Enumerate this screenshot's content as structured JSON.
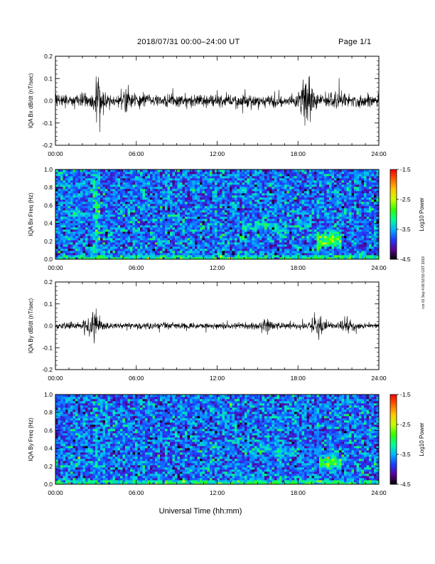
{
  "header": {
    "title": "2018/07/31  00:00–24:00 UT",
    "page": "Page 1/1"
  },
  "side_stamp": "run 01 Sep 4:06:53:53 GST 2019",
  "colors": {
    "background": "#ffffff",
    "trace": "#000000",
    "colorbar": [
      "#000000",
      "#5a0096",
      "#1e3cff",
      "#00b4ff",
      "#00ff96",
      "#32ff00",
      "#c8ff00",
      "#ffc800",
      "#ff6400",
      "#ff0000"
    ]
  },
  "chart_data": [
    {
      "type": "line",
      "ylabel": "IQA Bx dB/dt (nT/sec)",
      "xlim": [
        0,
        24
      ],
      "ylim": [
        -0.2,
        0.2
      ],
      "xticks": [
        "00:00",
        "06:00",
        "12:00",
        "18:00",
        "24:00"
      ],
      "yticks": [
        "-0.2",
        "-0.1",
        "0.0",
        "0.1",
        "0.2"
      ],
      "bursts": [
        {
          "center_h": 3.2,
          "width_h": 0.8,
          "amplitude": 0.15
        },
        {
          "center_h": 5.3,
          "width_h": 0.4,
          "amplitude": 0.05
        },
        {
          "center_h": 18.6,
          "width_h": 1.2,
          "amplitude": 0.13
        },
        {
          "center_h": 20.8,
          "width_h": 0.8,
          "amplitude": 0.06
        }
      ],
      "background_amplitude": 0.03
    },
    {
      "type": "heatmap",
      "ylabel": "IQA Bx Freq (Hz)",
      "xlim": [
        0,
        24
      ],
      "ylim": [
        0.0,
        1.0
      ],
      "xticks": [
        "00:00",
        "06:00",
        "12:00",
        "18:00",
        "24:00"
      ],
      "yticks": [
        "0.0",
        "0.2",
        "0.4",
        "0.6",
        "0.8",
        "1.0"
      ],
      "colorbar": {
        "label": "Log10 Power",
        "range": [
          -4.5,
          -1.5
        ],
        "ticks": [
          "-1.5",
          "-2.5",
          "-3.5",
          "-4.5"
        ]
      },
      "background_level": -3.7,
      "features": [
        {
          "t_start": 0,
          "t_end": 24,
          "f_center": 0.02,
          "f_width": 0.04,
          "level": -2.8
        },
        {
          "t_start": 13.8,
          "t_end": 18.3,
          "f_center": 0.37,
          "f_width": 0.08,
          "level": -3.3
        },
        {
          "t_start": 19.4,
          "t_end": 21.2,
          "f_center": 0.22,
          "f_width": 0.16,
          "level": -2.6
        },
        {
          "t_start": 2.8,
          "t_end": 3.3,
          "f_center": 0.5,
          "f_width": 1.0,
          "level": -3.3
        }
      ]
    },
    {
      "type": "line",
      "ylabel": "IQA By dB/dt (nT/sec)",
      "xlim": [
        0,
        24
      ],
      "ylim": [
        -0.2,
        0.2
      ],
      "xticks": [
        "00:00",
        "06:00",
        "12:00",
        "18:00",
        "24:00"
      ],
      "yticks": [
        "-0.2",
        "-0.1",
        "0.0",
        "0.1",
        "0.2"
      ],
      "bursts": [
        {
          "center_h": 2.8,
          "width_h": 1.2,
          "amplitude": 0.09
        },
        {
          "center_h": 15.8,
          "width_h": 0.8,
          "amplitude": 0.04
        },
        {
          "center_h": 19.4,
          "width_h": 1.2,
          "amplitude": 0.05
        },
        {
          "center_h": 21.6,
          "width_h": 1.2,
          "amplitude": 0.04
        }
      ],
      "background_amplitude": 0.015
    },
    {
      "type": "heatmap",
      "ylabel": "IQA By Freq (Hz)",
      "xlim": [
        0,
        24
      ],
      "ylim": [
        0.0,
        1.0
      ],
      "xticks": [
        "00:00",
        "06:00",
        "12:00",
        "18:00",
        "24:00"
      ],
      "yticks": [
        "0.0",
        "0.2",
        "0.4",
        "0.6",
        "0.8",
        "1.0"
      ],
      "colorbar": {
        "label": "Log10 Power",
        "range": [
          -4.5,
          -1.5
        ],
        "ticks": [
          "-1.5",
          "-2.5",
          "-3.5",
          "-4.5"
        ]
      },
      "background_level": -3.7,
      "features": [
        {
          "t_start": 0,
          "t_end": 24,
          "f_center": 0.02,
          "f_width": 0.05,
          "level": -2.9
        },
        {
          "t_start": 14.0,
          "t_end": 18.0,
          "f_center": 0.37,
          "f_width": 0.07,
          "level": -3.3
        },
        {
          "t_start": 19.5,
          "t_end": 21.3,
          "f_center": 0.24,
          "f_width": 0.14,
          "level": -2.7
        },
        {
          "t_start": 2.9,
          "t_end": 3.2,
          "f_center": 0.5,
          "f_width": 1.0,
          "level": -3.4
        }
      ]
    }
  ],
  "xlabel": "Universal Time (hh:mm)"
}
